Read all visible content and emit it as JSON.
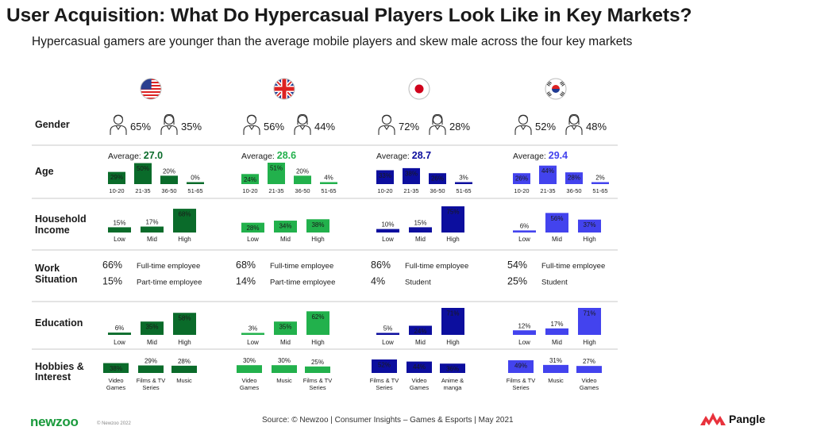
{
  "title": "User Acquisition: What Do Hypercasual Players Look Like in Key Markets?",
  "subtitle": "Hypercasual gamers are younger than the average mobile players and skew male across the four key markets",
  "row_labels": {
    "gender": "Gender",
    "age": "Age",
    "income": [
      "Household",
      "Income"
    ],
    "work": [
      "Work",
      "Situation"
    ],
    "education": "Education",
    "hobbies": [
      "Hobbies &",
      "Interest"
    ]
  },
  "average_label": "Average: ",
  "footer": {
    "source": "Source: © Newzoo | Consumer Insights – Games & Esports | May 2021",
    "brand_left": "newzoo",
    "copyright": "© Newzoo 2022",
    "brand_right": "Pangle"
  },
  "colors": {
    "us": "#0a6b2a",
    "uk": "#22b14c",
    "jp": "#0c0e9e",
    "kr": "#4343ee"
  },
  "markets": [
    {
      "id": "us",
      "flag": "usa-flag-icon",
      "gender": {
        "male": "65%",
        "female": "35%"
      },
      "age": {
        "average": "27.0",
        "cats": [
          "10-20",
          "21-35",
          "36-50",
          "51-65"
        ],
        "values": [
          29,
          50,
          20,
          0
        ]
      },
      "income": {
        "cats": [
          "Low",
          "Mid",
          "High"
        ],
        "values": [
          15,
          17,
          68
        ]
      },
      "work": [
        {
          "pct": "66%",
          "label": "Full-time employee"
        },
        {
          "pct": "15%",
          "label": "Part-time employee"
        }
      ],
      "education": {
        "cats": [
          "Low",
          "Mid",
          "High"
        ],
        "values": [
          6,
          35,
          58
        ]
      },
      "hobbies": {
        "cats": [
          "Video\nGames",
          "Films & TV\nSeries",
          "Music"
        ],
        "values": [
          38,
          29,
          28
        ]
      }
    },
    {
      "id": "uk",
      "flag": "uk-flag-icon",
      "gender": {
        "male": "56%",
        "female": "44%"
      },
      "age": {
        "average": "28.6",
        "cats": [
          "10-20",
          "21-35",
          "36-50",
          "51-65"
        ],
        "values": [
          24,
          51,
          20,
          4
        ]
      },
      "income": {
        "cats": [
          "Low",
          "Mid",
          "High"
        ],
        "values": [
          28,
          34,
          38
        ]
      },
      "work": [
        {
          "pct": "68%",
          "label": "Full-time employee"
        },
        {
          "pct": "14%",
          "label": "Part-time employee"
        }
      ],
      "education": {
        "cats": [
          "Low",
          "Mid",
          "High"
        ],
        "values": [
          3,
          35,
          62
        ]
      },
      "hobbies": {
        "cats": [
          "Video\nGames",
          "Music",
          "Films & TV\nSeries"
        ],
        "values": [
          30,
          30,
          25
        ]
      }
    },
    {
      "id": "jp",
      "flag": "japan-flag-icon",
      "gender": {
        "male": "72%",
        "female": "28%"
      },
      "age": {
        "average": "28.7",
        "cats": [
          "10-20",
          "21-35",
          "36-50",
          "51-65"
        ],
        "values": [
          33,
          38,
          26,
          3
        ]
      },
      "income": {
        "cats": [
          "Low",
          "Mid",
          "High"
        ],
        "values": [
          10,
          15,
          75
        ]
      },
      "work": [
        {
          "pct": "86%",
          "label": "Full-time employee"
        },
        {
          "pct": "4%",
          "label": "Student"
        }
      ],
      "education": {
        "cats": [
          "Low",
          "Mid",
          "High"
        ],
        "values": [
          5,
          24,
          71
        ]
      },
      "hobbies": {
        "cats": [
          "Films & TV\nSeries",
          "Video\nGames",
          "Anime &\nmanga"
        ],
        "values": [
          52,
          44,
          36
        ]
      }
    },
    {
      "id": "kr",
      "flag": "korea-flag-icon",
      "gender": {
        "male": "52%",
        "female": "48%"
      },
      "age": {
        "average": "29.4",
        "cats": [
          "10-20",
          "21-35",
          "36-50",
          "51-65"
        ],
        "values": [
          26,
          44,
          28,
          2
        ]
      },
      "income": {
        "cats": [
          "Low",
          "Mid",
          "High"
        ],
        "values": [
          6,
          56,
          37
        ]
      },
      "work": [
        {
          "pct": "54%",
          "label": "Full-time employee"
        },
        {
          "pct": "25%",
          "label": "Student"
        }
      ],
      "education": {
        "cats": [
          "Low",
          "Mid",
          "High"
        ],
        "values": [
          12,
          17,
          71
        ]
      },
      "hobbies": {
        "cats": [
          "Films & TV\nSeries",
          "Music",
          "Video\nGames"
        ],
        "values": [
          49,
          31,
          27
        ]
      }
    }
  ],
  "chart_data": {
    "type": "bar",
    "title": "User Acquisition: What Do Hypercasual Players Look Like in Key Markets?",
    "subtitle": "Hypercasual gamers are younger than the average mobile players and skew male across the four key markets",
    "unit": "%",
    "panels": [
      {
        "metric": "Age",
        "categories": [
          "10-20",
          "21-35",
          "36-50",
          "51-65"
        ],
        "average": [
          27.0,
          28.6,
          28.7,
          29.4
        ],
        "series": [
          {
            "values": [
              29,
              50,
              20,
              0
            ]
          },
          {
            "values": [
              24,
              51,
              20,
              4
            ]
          },
          {
            "values": [
              33,
              38,
              26,
              3
            ]
          },
          {
            "values": [
              26,
              44,
              28,
              2
            ]
          }
        ]
      },
      {
        "metric": "Household Income",
        "categories": [
          "Low",
          "Mid",
          "High"
        ],
        "series": [
          {
            "values": [
              15,
              17,
              68
            ]
          },
          {
            "values": [
              28,
              34,
              38
            ]
          },
          {
            "values": [
              10,
              15,
              75
            ]
          },
          {
            "values": [
              6,
              56,
              37
            ]
          }
        ]
      },
      {
        "metric": "Education",
        "categories": [
          "Low",
          "Mid",
          "High"
        ],
        "series": [
          {
            "values": [
              6,
              35,
              58
            ]
          },
          {
            "values": [
              3,
              35,
              62
            ]
          },
          {
            "values": [
              5,
              24,
              71
            ]
          },
          {
            "values": [
              12,
              17,
              71
            ]
          }
        ]
      },
      {
        "metric": "Hobbies & Interest",
        "series": [
          {
            "categories": [
              "Video Games",
              "Films & TV Series",
              "Music"
            ],
            "values": [
              38,
              29,
              28
            ]
          },
          {
            "categories": [
              "Video Games",
              "Music",
              "Films & TV Series"
            ],
            "values": [
              30,
              30,
              25
            ]
          },
          {
            "categories": [
              "Films & TV Series",
              "Video Games",
              "Anime & manga"
            ],
            "values": [
              52,
              44,
              36
            ]
          },
          {
            "categories": [
              "Films & TV Series",
              "Music",
              "Video Games"
            ],
            "values": [
              49,
              31,
              27
            ]
          }
        ]
      },
      {
        "metric": "Gender",
        "categories": [
          "Male",
          "Female"
        ],
        "series": [
          {
            "values": [
              65,
              35
            ]
          },
          {
            "values": [
              56,
              44
            ]
          },
          {
            "values": [
              72,
              28
            ]
          },
          {
            "values": [
              52,
              48
            ]
          }
        ]
      },
      {
        "metric": "Work Situation",
        "series": [
          {
            "categories": [
              "Full-time employee",
              "Part-time employee"
            ],
            "values": [
              66,
              15
            ]
          },
          {
            "categories": [
              "Full-time employee",
              "Part-time employee"
            ],
            "values": [
              68,
              14
            ]
          },
          {
            "categories": [
              "Full-time employee",
              "Student"
            ],
            "values": [
              86,
              4
            ]
          },
          {
            "categories": [
              "Full-time employee",
              "Student"
            ],
            "values": [
              54,
              25
            ]
          }
        ]
      }
    ]
  }
}
